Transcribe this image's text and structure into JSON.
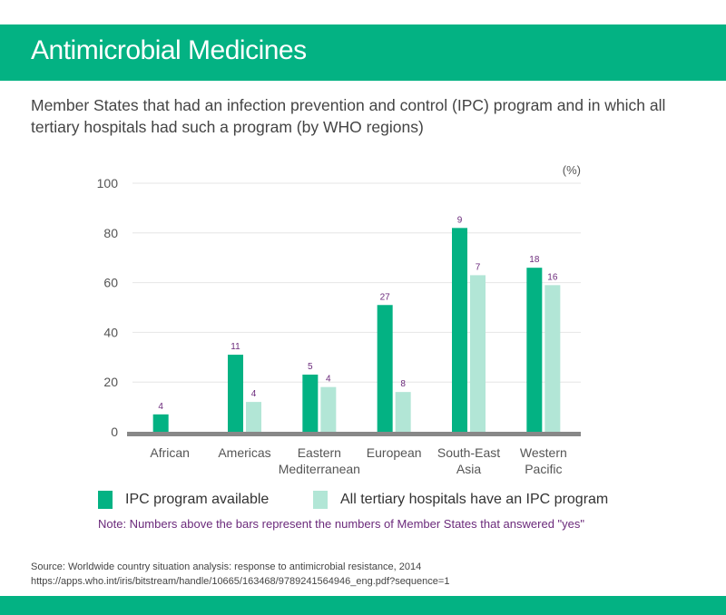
{
  "header": {
    "title": "Antimicrobial Medicines"
  },
  "subtitle": "Member States that had an infection prevention and control (IPC) program and in which all tertiary hospitals had such a program (by WHO regions)",
  "colors": {
    "brand": "#03b283",
    "series_ipc": "#03b283",
    "series_all": "#b2e6d6",
    "axis": "#888888",
    "grid": "#e6e6e6",
    "data_label": "#6b2a7b"
  },
  "legend": [
    {
      "label": "IPC program available",
      "color": "#03b283"
    },
    {
      "label": "All tertiary hospitals have an IPC program",
      "color": "#b2e6d6"
    }
  ],
  "note": "Note: Numbers above the bars represent the numbers of Member States that answered \"yes\"",
  "source": {
    "line1": "Source: Worldwide country situation analysis: response to antimicrobial resistance, 2014",
    "line2": "https://apps.who.int/iris/bitstream/handle/10665/163468/9789241564946_eng.pdf?sequence=1"
  },
  "chart_data": {
    "type": "bar",
    "title": "Member States that had an infection prevention and control (IPC) program and in which all tertiary hospitals had such a program (by WHO regions)",
    "xlabel": "",
    "ylabel": "(%)",
    "ylim": [
      0,
      100
    ],
    "yticks": [
      0,
      20,
      40,
      60,
      80,
      100
    ],
    "grid": true,
    "legend_position": "bottom",
    "categories": [
      [
        "African"
      ],
      [
        "Americas"
      ],
      [
        "Eastern",
        "Mediterranean"
      ],
      [
        "European"
      ],
      [
        "South-East",
        "Asia"
      ],
      [
        "Western",
        "Pacific"
      ]
    ],
    "series": [
      {
        "name": "IPC program available",
        "values": [
          7,
          31,
          23,
          51,
          82,
          66
        ],
        "labels": [
          "4",
          "11",
          "5",
          "27",
          "9",
          "18"
        ]
      },
      {
        "name": "All tertiary hospitals have an IPC program",
        "values": [
          null,
          12,
          18,
          16,
          63,
          59
        ],
        "labels": [
          null,
          "4",
          "4",
          "8",
          "7",
          "16"
        ]
      }
    ]
  }
}
